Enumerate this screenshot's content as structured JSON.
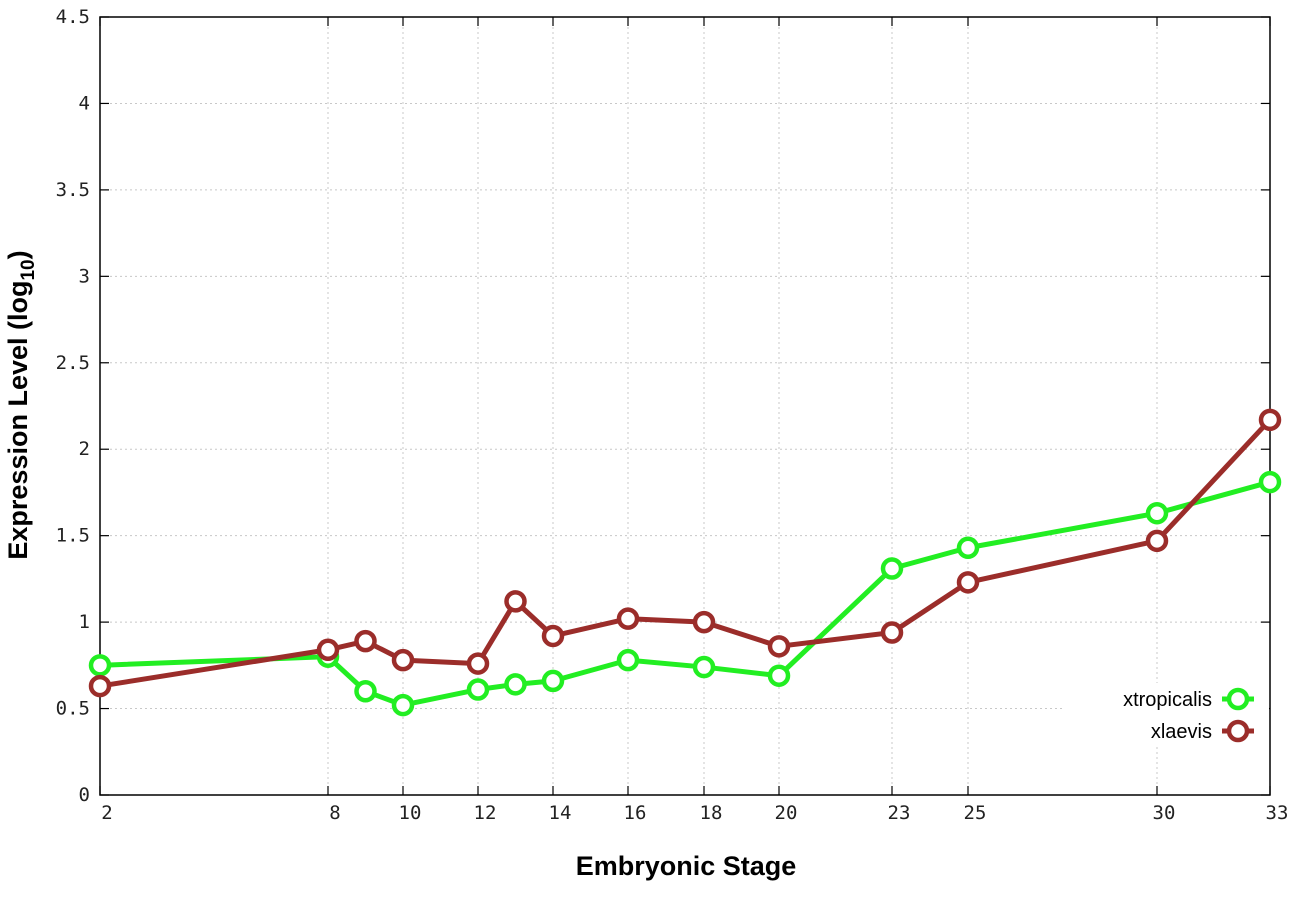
{
  "chart_data": {
    "type": "line",
    "xlabel": "Embryonic Stage",
    "ylabel": "Expression Level (log10)",
    "ylabel_main": "Expression Level (log",
    "ylabel_sub": "10",
    "ylabel_close": ")",
    "xlim": [
      2,
      33
    ],
    "ylim": [
      0,
      4.5
    ],
    "x_ticks": [
      2,
      8,
      10,
      12,
      14,
      16,
      18,
      20,
      23,
      25,
      30,
      33
    ],
    "y_ticks": [
      0,
      0.5,
      1,
      1.5,
      2,
      2.5,
      3,
      3.5,
      4,
      4.5
    ],
    "y_tick_labels": [
      "0",
      "0.5",
      "1",
      "1.5",
      "2",
      "2.5",
      "3",
      "3.5",
      "4",
      "4.5"
    ],
    "x": [
      2,
      8,
      9,
      10,
      12,
      13,
      14,
      16,
      18,
      20,
      23,
      25,
      30,
      33
    ],
    "grid": true,
    "legend_position": "bottom-right",
    "series": [
      {
        "name": "xtropicalis",
        "color": "#22ee22",
        "values": [
          0.75,
          0.8,
          0.6,
          0.52,
          0.61,
          0.64,
          0.66,
          0.78,
          0.74,
          0.69,
          1.31,
          1.43,
          1.63,
          1.81
        ]
      },
      {
        "name": "xlaevis",
        "color": "#9b2d2a",
        "values": [
          0.63,
          0.84,
          0.89,
          0.78,
          0.76,
          1.12,
          0.92,
          1.02,
          1.0,
          0.86,
          0.94,
          1.23,
          1.47,
          2.17
        ]
      }
    ]
  }
}
